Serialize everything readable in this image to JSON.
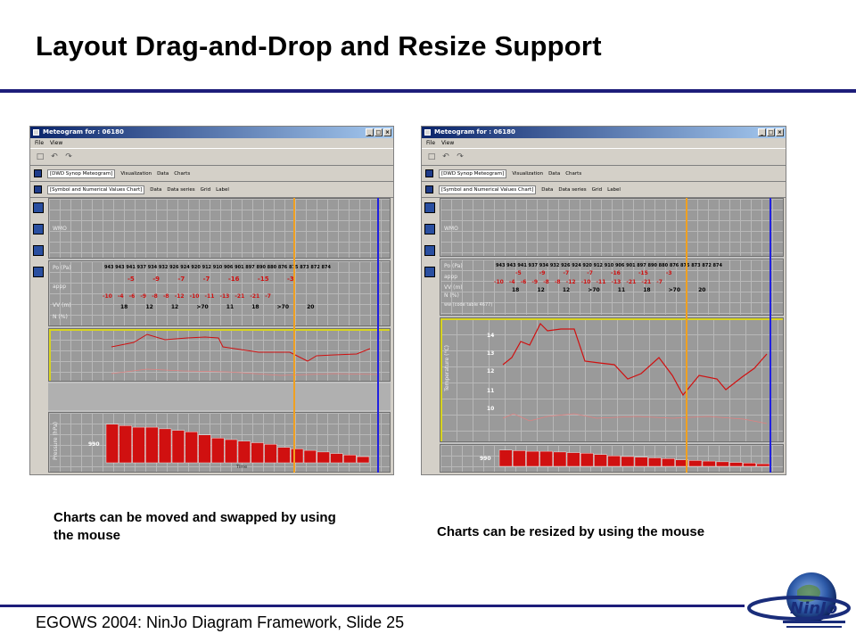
{
  "slide": {
    "title": "Layout Drag-and-Drop and Resize Support",
    "footer": "EGOWS 2004: NinJo Diagram Framework, Slide 25",
    "captions": {
      "left": "Charts can be moved and swapped by using the mouse",
      "right": "Charts can be resized by using the mouse"
    }
  },
  "window": {
    "title": "Meteogram for : 06180",
    "menu": [
      "File",
      "View"
    ],
    "buttons": [
      "_",
      "□",
      "×"
    ],
    "meteogram_bar": {
      "label": "[DWD Synop Meteogram]",
      "items": [
        "Visualization",
        "Data",
        "Charts"
      ]
    },
    "chart_bar": {
      "label": "[Symbol and Numerical Values Chart]",
      "items": [
        "Data",
        "Data series",
        "Grid",
        "Label"
      ]
    }
  },
  "panels": {
    "wmo": "WMO",
    "row_labels": [
      "Po (Pa)",
      "appp",
      "VV (m)",
      "N (%)"
    ],
    "pressure_values": "943 943 941 937 934 932    926 924 920    912 910 906 901 897 890 880 876 875 873    872 874",
    "appp_values": "-5  -9  -7  -7  -16  -15  -3",
    "appp_low_values": "-10  -4  -6  -9  -8  -8  -12  -10  -11  -13  -21  -21  -7",
    "vv_values": "18  12  12  >70  11  18  >70  20",
    "wind_label": "ww (code table 4677)",
    "temp_label": "Temperature (°C)",
    "pressure_label": "Pressure (hPa)",
    "time_label": "Time",
    "bar_axis_value": "990",
    "temp_ticks": [
      "14",
      "13",
      "12",
      "11",
      "10"
    ]
  },
  "chart_data": {
    "type": "bar",
    "xlabel": "Time",
    "ylabel": "Pressure (hPa)",
    "values": [
      995,
      994,
      993,
      993,
      992,
      991,
      990,
      988,
      986,
      985,
      984,
      983,
      982,
      980,
      979,
      978,
      977,
      976,
      975,
      974
    ]
  },
  "colors": {
    "title_bar": "#0a246a",
    "rule": "#1d1d7a",
    "red_series": "#d01010",
    "yellow_frame": "#d8d420",
    "orange_line": "#f0a020",
    "blue_line": "#2020e0"
  }
}
